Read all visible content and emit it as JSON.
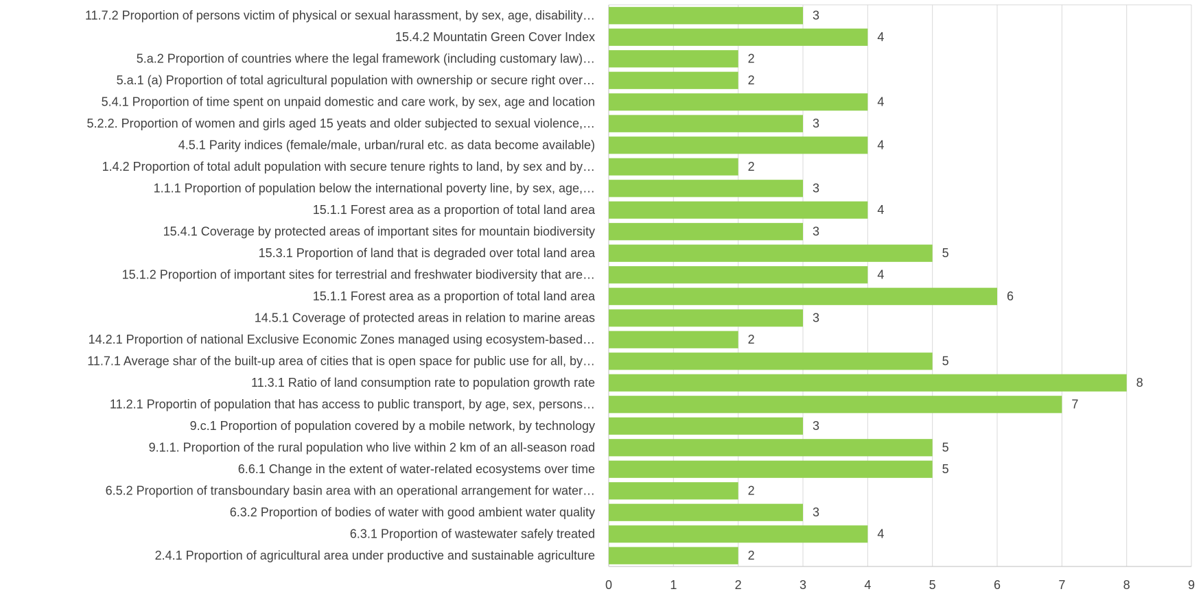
{
  "chart_data": {
    "type": "barh",
    "categories": [
      "11.7.2 Proportion of persons victim of physical or sexual harassment, by sex, age, disability…",
      "15.4.2 Mountatin Green Cover Index",
      "5.a.2 Proportion of countries where the legal framework (including customary law)…",
      "5.a.1 (a) Proportion of total agricultural population with ownership or secure right over…",
      "5.4.1 Proportion of time spent on unpaid domestic and care work, by sex, age and location",
      "5.2.2. Proportion of women and girls aged 15 yeats and older subjected to sexual violence,…",
      "4.5.1 Parity indices (female/male, urban/rural etc. as data become available)",
      "1.4.2 Proportion of total adult population with secure tenure rights to land, by sex and by…",
      "1.1.1 Proportion of population below the international poverty line, by sex, age,…",
      "15.1.1 Forest area as a proportion of total land area",
      "15.4.1 Coverage by protected areas of important sites for mountain biodiversity",
      "15.3.1 Proportion of land that is degraded over total land area",
      "15.1.2 Proportion of important sites for terrestrial and freshwater biodiversity that are…",
      "15.1.1 Forest area as a proportion of total land area",
      "14.5.1 Coverage of protected areas in relation to marine areas",
      "14.2.1 Proportion of national Exclusive Economic Zones managed using ecosystem-based…",
      "11.7.1 Average shar of the built-up area of cities that is open space for public use for all, by…",
      "11.3.1 Ratio of land consumption rate to population growth rate",
      "11.2.1 Proportin of population that has access to public transport, by age, sex, persons…",
      "9.c.1 Proportion of population covered by a mobile network, by technology",
      "9.1.1. Proportion of the rural population who live within  2 km of an all-season road",
      "6.6.1 Change in the extent of water-related ecosystems over time",
      "6.5.2 Proportion of transboundary basin area with an operational arrangement for water…",
      "6.3.2 Proportion of bodies of water with good ambient water quality",
      "6.3.1 Proportion of wastewater safely treated",
      "2.4.1 Proportion of agricultural area under productive and sustainable agriculture"
    ],
    "values": [
      3,
      4,
      2,
      2,
      4,
      3,
      4,
      2,
      3,
      4,
      3,
      5,
      4,
      6,
      3,
      2,
      5,
      8,
      7,
      3,
      5,
      5,
      2,
      3,
      4,
      2
    ],
    "color": "#92d050",
    "xlim": [
      0,
      9
    ],
    "xticks": [
      0,
      1,
      2,
      3,
      4,
      5,
      6,
      7,
      8,
      9
    ],
    "grid": true
  }
}
